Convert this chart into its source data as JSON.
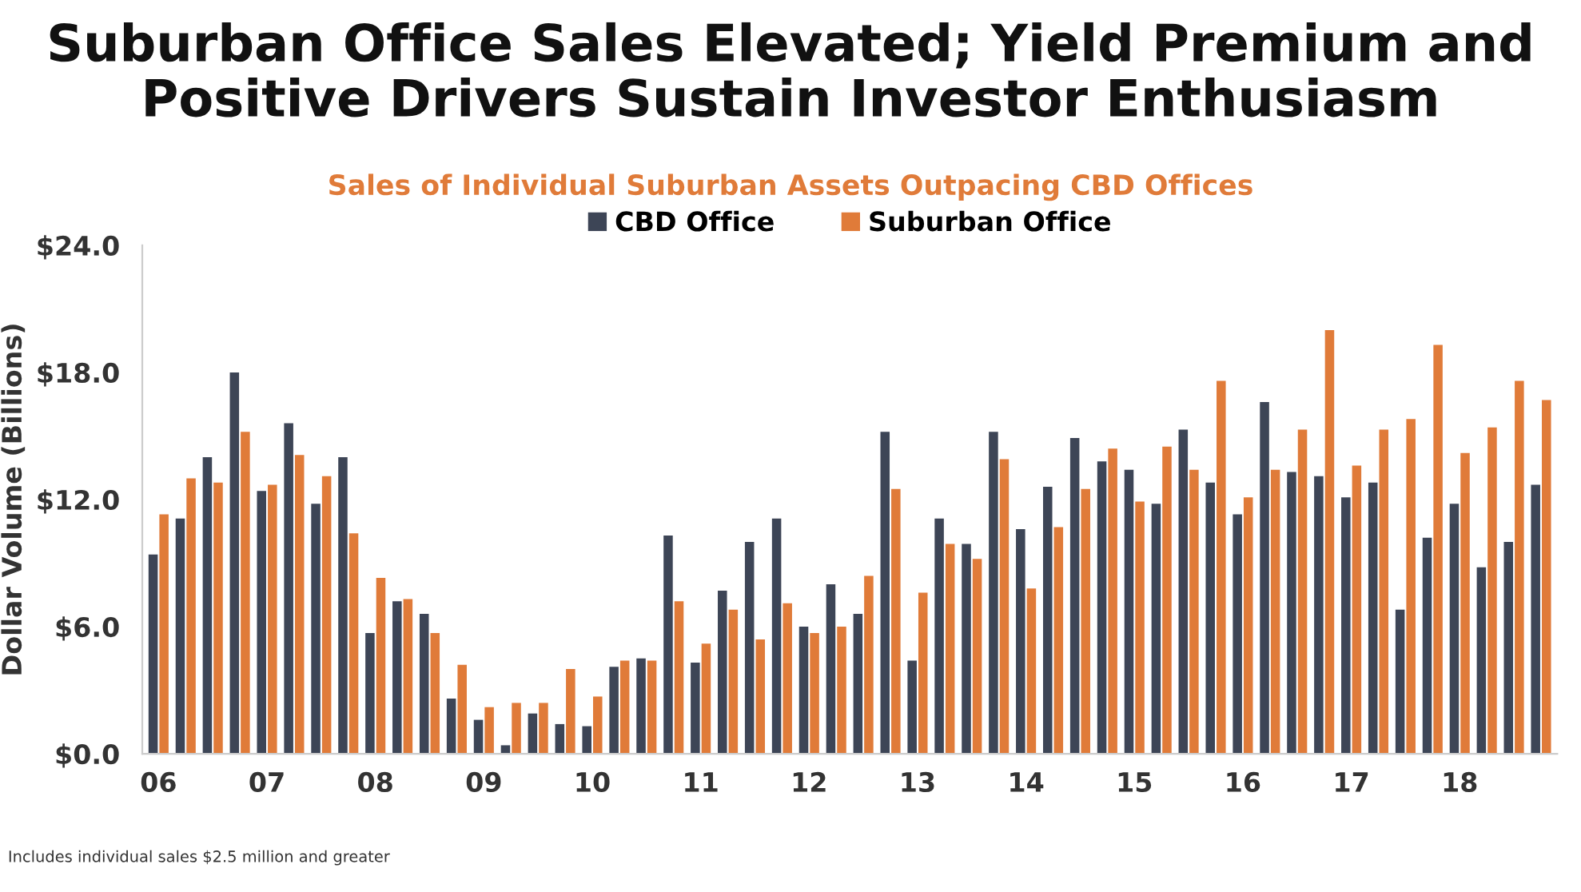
{
  "chart_data": {
    "type": "bar",
    "title": "Suburban Office Sales Elevated; Yield Premium and\nPositive Drivers Sustain Investor Enthusiasm",
    "subtitle": "Sales of Individual Suburban Assets Outpacing CBD Offices",
    "ylabel": "Dollar Volume (Billions)",
    "categories": [
      "06",
      null,
      null,
      null,
      "07",
      null,
      null,
      null,
      "08",
      null,
      null,
      null,
      "09",
      null,
      null,
      null,
      "10",
      null,
      null,
      null,
      "11",
      null,
      null,
      null,
      "12",
      null,
      null,
      null,
      "13",
      null,
      null,
      null,
      "14",
      null,
      null,
      null,
      "15",
      null,
      null,
      null,
      "16",
      null,
      null,
      null,
      "17",
      null,
      null,
      null,
      "18",
      null,
      null,
      null
    ],
    "series": [
      {
        "name": "CBD Office",
        "color": "#3d4556",
        "values": [
          9.4,
          11.1,
          14.0,
          18.0,
          12.4,
          15.6,
          11.8,
          14.0,
          5.7,
          7.2,
          6.6,
          2.6,
          1.6,
          0.4,
          1.9,
          1.4,
          1.3,
          4.1,
          4.5,
          10.3,
          4.3,
          7.7,
          10.0,
          11.1,
          6.0,
          8.0,
          6.6,
          15.2,
          4.4,
          11.1,
          9.9,
          15.2,
          10.6,
          12.6,
          14.9,
          13.8,
          13.4,
          11.8,
          15.3,
          12.8,
          11.3,
          16.6,
          13.3,
          13.1,
          12.1,
          12.8,
          6.8,
          10.2,
          11.8,
          8.8,
          10.0,
          12.7
        ]
      },
      {
        "name": "Suburban Office",
        "color": "#e07b39",
        "values": [
          11.3,
          13.0,
          12.8,
          15.2,
          12.7,
          14.1,
          13.1,
          10.4,
          8.3,
          7.3,
          5.7,
          4.2,
          2.2,
          2.4,
          2.4,
          4.0,
          2.7,
          4.4,
          4.4,
          7.2,
          5.2,
          6.8,
          5.4,
          7.1,
          5.7,
          6.0,
          8.4,
          12.5,
          7.6,
          9.9,
          9.2,
          13.9,
          7.8,
          10.7,
          12.5,
          14.4,
          11.9,
          14.5,
          13.4,
          17.6,
          12.1,
          13.4,
          15.3,
          20.0,
          13.6,
          15.3,
          15.8,
          19.3,
          14.2,
          15.4,
          17.6,
          16.7
        ]
      }
    ],
    "ylim": [
      0,
      24
    ],
    "yticks": [
      {
        "value": 0,
        "label": "$0.0"
      },
      {
        "value": 6,
        "label": "$6.0"
      },
      {
        "value": 12,
        "label": "$12.0"
      },
      {
        "value": 18,
        "label": "$18.0"
      },
      {
        "value": 24,
        "label": "$24.0"
      }
    ],
    "grid": false,
    "legend": "top",
    "annotations": [
      "Includes individual sales $2.5 million and greater"
    ]
  }
}
